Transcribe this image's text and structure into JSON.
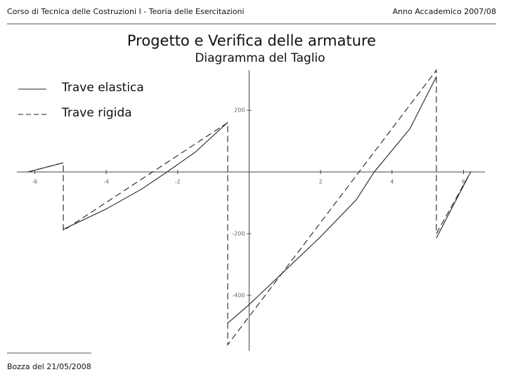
{
  "header": {
    "course": "Corso di Tecnica delle Costruzioni I - Teoria delle Esercitazioni",
    "year": "Anno Accademico 2007/08"
  },
  "footer": {
    "draft": "Bozza del 21/05/2008"
  },
  "chart_data": {
    "type": "line",
    "title": "Progetto e Verifica delle armature",
    "subtitle": "Diagramma del Taglio",
    "xlim": [
      -6.5,
      6.6
    ],
    "ylim": [
      -580,
      330
    ],
    "xticks": [
      -6,
      -4,
      -2,
      2,
      4,
      6
    ],
    "yticks": [
      200,
      -200,
      -400
    ],
    "legend": "upper-left",
    "series": [
      {
        "name": "Trave elastica",
        "color": "#222222",
        "line_style": "solid",
        "x": [
          -6.2,
          -5.2,
          null,
          -5.2,
          -4,
          -3,
          -2.3,
          -1.5,
          -0.6,
          null,
          -0.6,
          0,
          1,
          2,
          3,
          3.5,
          4.5,
          5.24,
          null,
          5.24,
          6.2
        ],
        "values": [
          0,
          30,
          null,
          -186,
          -120,
          -55,
          0,
          65,
          161,
          null,
          -490,
          -430,
          -320,
          -210,
          -90,
          0,
          140,
          309,
          null,
          -214,
          0
        ]
      },
      {
        "name": "Trave rigida",
        "color": "#222222",
        "line_style": "dashed",
        "x": [
          -6.2,
          -5.2,
          -5.2,
          -0.6,
          -0.6,
          5.24,
          5.24,
          6.2
        ],
        "values": [
          0,
          30,
          -190,
          160,
          -560,
          330,
          -200,
          0
        ]
      }
    ]
  }
}
